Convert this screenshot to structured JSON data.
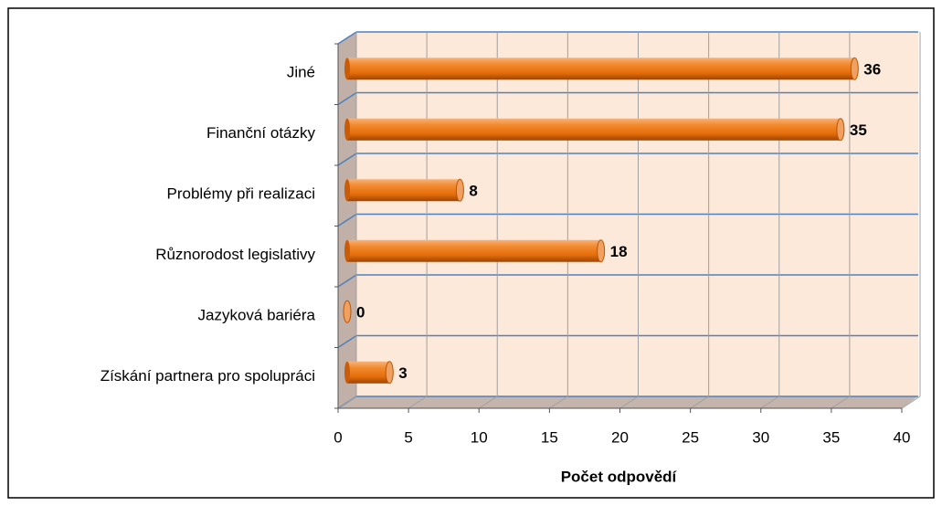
{
  "chart_data": {
    "type": "bar",
    "orientation": "horizontal",
    "x_label": "Počet odpovědí",
    "categories": [
      "Jiné",
      "Finanční otázky",
      "Problémy při realizaci",
      "Různorodost legislativy",
      "Jazyková bariéra",
      "Získání partnera pro spolupráci"
    ],
    "values": [
      36,
      35,
      8,
      18,
      0,
      3
    ],
    "color": "#e46c0a",
    "xlim": [
      0,
      40
    ],
    "xticks": [
      0,
      5,
      10,
      15,
      20,
      25,
      30,
      35,
      40
    ],
    "grid": true
  }
}
